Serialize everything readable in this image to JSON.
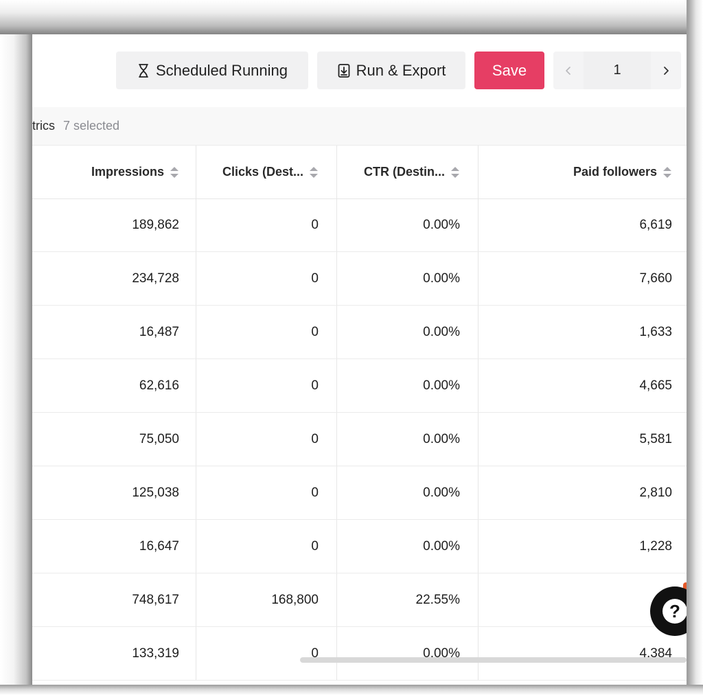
{
  "toolbar": {
    "scheduled_label": "Scheduled Running",
    "scheduled_icon": "hourglass-icon",
    "run_export_label": "Run & Export",
    "run_export_icon": "download-icon",
    "save_label": "Save",
    "save_color": "#e63e64",
    "pager": {
      "current_page": "1",
      "prev_icon": "chevron-left-icon",
      "next_icon": "chevron-right-icon"
    }
  },
  "metrics": {
    "label": "trics",
    "selected": "7 selected"
  },
  "table": {
    "columns": [
      {
        "label": "Impressions"
      },
      {
        "label": "Clicks (Dest..."
      },
      {
        "label": "CTR (Destin..."
      },
      {
        "label": "Paid followers"
      }
    ],
    "rows": [
      {
        "impressions": "189,862",
        "clicks": "0",
        "ctr": "0.00%",
        "paid_followers": "6,619"
      },
      {
        "impressions": "234,728",
        "clicks": "0",
        "ctr": "0.00%",
        "paid_followers": "7,660"
      },
      {
        "impressions": "16,487",
        "clicks": "0",
        "ctr": "0.00%",
        "paid_followers": "1,633"
      },
      {
        "impressions": "62,616",
        "clicks": "0",
        "ctr": "0.00%",
        "paid_followers": "4,665"
      },
      {
        "impressions": "75,050",
        "clicks": "0",
        "ctr": "0.00%",
        "paid_followers": "5,581"
      },
      {
        "impressions": "125,038",
        "clicks": "0",
        "ctr": "0.00%",
        "paid_followers": "2,810"
      },
      {
        "impressions": "16,647",
        "clicks": "0",
        "ctr": "0.00%",
        "paid_followers": "1,228"
      },
      {
        "impressions": "748,617",
        "clicks": "168,800",
        "ctr": "22.55%",
        "paid_followers": ""
      },
      {
        "impressions": "133,319",
        "clicks": "0",
        "ctr": "0.00%",
        "paid_followers": "4,384"
      }
    ]
  },
  "help": {
    "label": "?",
    "icon": "help-icon"
  }
}
